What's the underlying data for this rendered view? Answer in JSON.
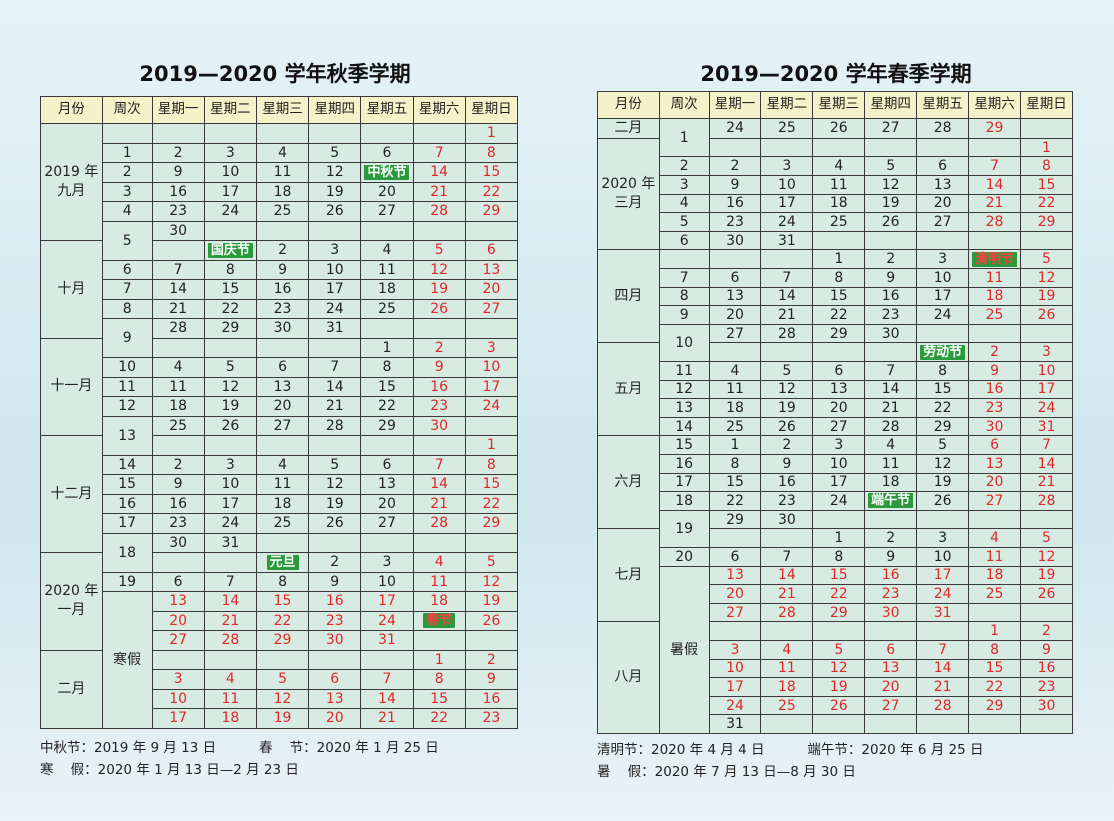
{
  "autumn": {
    "title": "2019—2020 学年秋季学期",
    "headers": [
      "月份",
      "周次",
      "星期一",
      "星期二",
      "星期三",
      "星期四",
      "星期五",
      "星期六",
      "星期日"
    ],
    "months": {
      "m9": "2019 年 九月",
      "m10": "十月",
      "m11": "十一月",
      "m12": "十二月",
      "m1": "2020 年 一月",
      "m2": "二月"
    },
    "weeks": {
      "w5": "5",
      "w9": "9",
      "w13": "13",
      "w18": "18",
      "vac": "寒假"
    },
    "rows": [
      [
        "",
        "",
        "",
        "",
        "",
        "",
        "",
        "1"
      ],
      [
        "1",
        "2",
        "3",
        "4",
        "5",
        "6",
        "7",
        "8"
      ],
      [
        "2",
        "9",
        "10",
        "11",
        "12",
        "中秋节",
        "14",
        "15"
      ],
      [
        "3",
        "16",
        "17",
        "18",
        "19",
        "20",
        "21",
        "22"
      ],
      [
        "4",
        "23",
        "24",
        "25",
        "26",
        "27",
        "28",
        "29"
      ],
      [
        "",
        "30",
        "",
        "",
        "",
        "",
        "",
        ""
      ],
      [
        "",
        "",
        "国庆节",
        "2",
        "3",
        "4",
        "5",
        "6"
      ],
      [
        "6",
        "7",
        "8",
        "9",
        "10",
        "11",
        "12",
        "13"
      ],
      [
        "7",
        "14",
        "15",
        "16",
        "17",
        "18",
        "19",
        "20"
      ],
      [
        "8",
        "21",
        "22",
        "23",
        "24",
        "25",
        "26",
        "27"
      ],
      [
        "",
        "28",
        "29",
        "30",
        "31",
        "",
        "",
        ""
      ],
      [
        "",
        "",
        "",
        "",
        "",
        "1",
        "2",
        "3"
      ],
      [
        "10",
        "4",
        "5",
        "6",
        "7",
        "8",
        "9",
        "10"
      ],
      [
        "11",
        "11",
        "12",
        "13",
        "14",
        "15",
        "16",
        "17"
      ],
      [
        "12",
        "18",
        "19",
        "20",
        "21",
        "22",
        "23",
        "24"
      ],
      [
        "",
        "25",
        "26",
        "27",
        "28",
        "29",
        "30",
        ""
      ],
      [
        "",
        "",
        "",
        "",
        "",
        "",
        "",
        "1"
      ],
      [
        "14",
        "2",
        "3",
        "4",
        "5",
        "6",
        "7",
        "8"
      ],
      [
        "15",
        "9",
        "10",
        "11",
        "12",
        "13",
        "14",
        "15"
      ],
      [
        "16",
        "16",
        "17",
        "18",
        "19",
        "20",
        "21",
        "22"
      ],
      [
        "17",
        "23",
        "24",
        "25",
        "26",
        "27",
        "28",
        "29"
      ],
      [
        "",
        "30",
        "31",
        "",
        "",
        "",
        "",
        ""
      ],
      [
        "",
        "",
        "",
        "元旦",
        "2",
        "3",
        "4",
        "5"
      ],
      [
        "19",
        "6",
        "7",
        "8",
        "9",
        "10",
        "11",
        "12"
      ],
      [
        "",
        "13",
        "14",
        "15",
        "16",
        "17",
        "18",
        "19"
      ],
      [
        "",
        "20",
        "21",
        "22",
        "23",
        "24",
        "春节",
        "26"
      ],
      [
        "",
        "27",
        "28",
        "29",
        "30",
        "31",
        "",
        ""
      ],
      [
        "",
        "",
        "",
        "",
        "",
        "",
        "1",
        "2"
      ],
      [
        "",
        "3",
        "4",
        "5",
        "6",
        "7",
        "8",
        "9"
      ],
      [
        "",
        "10",
        "11",
        "12",
        "13",
        "14",
        "15",
        "16"
      ],
      [
        "",
        "17",
        "18",
        "19",
        "20",
        "21",
        "22",
        "23"
      ]
    ],
    "notes": [
      "中秋节：2019 年 9 月 13 日          春    节：2020 年 1 月 25 日",
      "寒    假：2020 年 1 月 13 日—2 月 23 日"
    ]
  },
  "spring": {
    "title": "2019—2020 学年春季学期",
    "headers": [
      "月份",
      "周次",
      "星期一",
      "星期二",
      "星期三",
      "星期四",
      "星期五",
      "星期六",
      "星期日"
    ],
    "months": {
      "m2": "二月",
      "m3": "2020 年 三月",
      "m4": "四月",
      "m5": "五月",
      "m6": "六月",
      "m7": "七月",
      "m8": "八月"
    },
    "weeks": {
      "w1": "1",
      "w10": "10",
      "w19": "19",
      "vac": "暑假"
    },
    "rows": [
      [
        "",
        "24",
        "25",
        "26",
        "27",
        "28",
        "29",
        ""
      ],
      [
        "",
        "",
        "",
        "",
        "",
        "",
        "",
        "1"
      ],
      [
        "2",
        "2",
        "3",
        "4",
        "5",
        "6",
        "7",
        "8"
      ],
      [
        "3",
        "9",
        "10",
        "11",
        "12",
        "13",
        "14",
        "15"
      ],
      [
        "4",
        "16",
        "17",
        "18",
        "19",
        "20",
        "21",
        "22"
      ],
      [
        "5",
        "23",
        "24",
        "25",
        "26",
        "27",
        "28",
        "29"
      ],
      [
        "6",
        "30",
        "31",
        "",
        "",
        "",
        "",
        ""
      ],
      [
        "",
        "",
        "",
        "1",
        "2",
        "3",
        "清明节",
        "5"
      ],
      [
        "7",
        "6",
        "7",
        "8",
        "9",
        "10",
        "11",
        "12"
      ],
      [
        "8",
        "13",
        "14",
        "15",
        "16",
        "17",
        "18",
        "19"
      ],
      [
        "9",
        "20",
        "21",
        "22",
        "23",
        "24",
        "25",
        "26"
      ],
      [
        "",
        "27",
        "28",
        "29",
        "30",
        "",
        "",
        ""
      ],
      [
        "",
        "",
        "",
        "",
        "",
        "劳动节",
        "2",
        "3"
      ],
      [
        "11",
        "4",
        "5",
        "6",
        "7",
        "8",
        "9",
        "10"
      ],
      [
        "12",
        "11",
        "12",
        "13",
        "14",
        "15",
        "16",
        "17"
      ],
      [
        "13",
        "18",
        "19",
        "20",
        "21",
        "22",
        "23",
        "24"
      ],
      [
        "14",
        "25",
        "26",
        "27",
        "28",
        "29",
        "30",
        "31"
      ],
      [
        "15",
        "1",
        "2",
        "3",
        "4",
        "5",
        "6",
        "7"
      ],
      [
        "16",
        "8",
        "9",
        "10",
        "11",
        "12",
        "13",
        "14"
      ],
      [
        "17",
        "15",
        "16",
        "17",
        "18",
        "19",
        "20",
        "21"
      ],
      [
        "18",
        "22",
        "23",
        "24",
        "端午节",
        "26",
        "27",
        "28"
      ],
      [
        "",
        "29",
        "30",
        "",
        "",
        "",
        "",
        ""
      ],
      [
        "",
        "",
        "",
        "1",
        "2",
        "3",
        "4",
        "5"
      ],
      [
        "20",
        "6",
        "7",
        "8",
        "9",
        "10",
        "11",
        "12"
      ],
      [
        "",
        "13",
        "14",
        "15",
        "16",
        "17",
        "18",
        "19"
      ],
      [
        "",
        "20",
        "21",
        "22",
        "23",
        "24",
        "25",
        "26"
      ],
      [
        "",
        "27",
        "28",
        "29",
        "30",
        "31",
        "",
        ""
      ],
      [
        "",
        "",
        "",
        "",
        "",
        "",
        "1",
        "2"
      ],
      [
        "",
        "3",
        "4",
        "5",
        "6",
        "7",
        "8",
        "9"
      ],
      [
        "",
        "10",
        "11",
        "12",
        "13",
        "14",
        "15",
        "16"
      ],
      [
        "",
        "17",
        "18",
        "19",
        "20",
        "21",
        "22",
        "23"
      ],
      [
        "",
        "24",
        "25",
        "26",
        "27",
        "28",
        "29",
        "30"
      ],
      [
        "",
        "31",
        "",
        "",
        "",
        "",
        "",
        ""
      ]
    ],
    "notes": [
      "清明节：2020 年 4 月 4 日          端午节：2020 年 6 月 25 日",
      "暑    假：2020 年 7 月 13 日—8 月 30 日"
    ]
  },
  "colors": {
    "weekend": "#e02828",
    "holiday": "#2b9a3c",
    "header": "#f4f2c8",
    "cell": "#d7ebe3",
    "border": "#3a3a3a"
  }
}
